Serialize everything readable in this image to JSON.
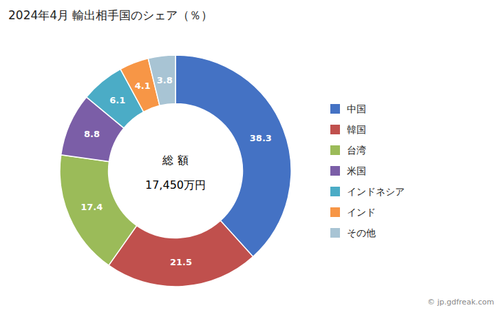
{
  "chart_data": {
    "type": "donut",
    "title": "2024年4月 輸出相手国のシェア（％）",
    "categories": [
      "中国",
      "韓国",
      "台湾",
      "米国",
      "インドネシア",
      "インド",
      "その他"
    ],
    "values": [
      38.3,
      21.5,
      17.4,
      8.8,
      6.1,
      4.1,
      3.8
    ],
    "colors": [
      "#4472C4",
      "#C0504D",
      "#9BBB59",
      "#7B5EA7",
      "#4BACC6",
      "#F79646",
      "#A8C4D4"
    ],
    "annotations": [
      "総 額",
      "17,450万円",
      "© jp.gdfreak.com"
    ],
    "data_labels": true,
    "legend": "right"
  }
}
